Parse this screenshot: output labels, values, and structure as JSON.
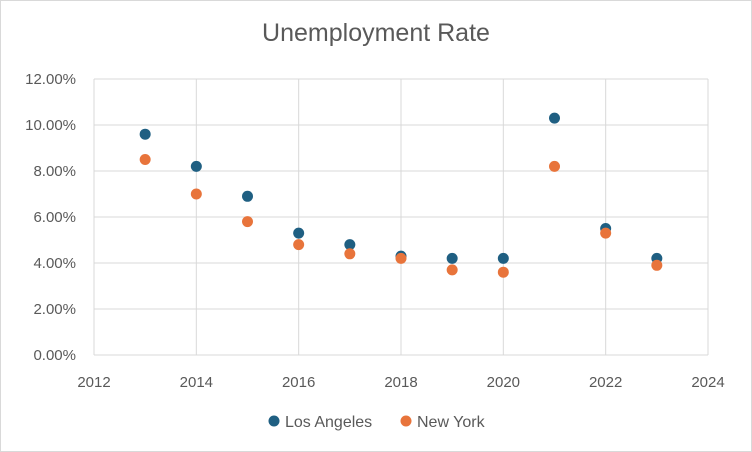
{
  "chart_data": {
    "type": "scatter",
    "title": "Unemployment Rate",
    "xlabel": "",
    "ylabel": "",
    "xlim": [
      2012,
      2024
    ],
    "ylim": [
      0,
      0.12
    ],
    "x_ticks": [
      "2012",
      "2014",
      "2016",
      "2018",
      "2020",
      "2022",
      "2024"
    ],
    "y_ticks": [
      "0.00%",
      "2.00%",
      "4.00%",
      "6.00%",
      "8.00%",
      "10.00%",
      "12.00%"
    ],
    "grid": true,
    "legend_position": "bottom",
    "x": [
      2013,
      2014,
      2015,
      2016,
      2017,
      2018,
      2019,
      2020,
      2021,
      2022,
      2023
    ],
    "series": [
      {
        "name": "Los Angeles",
        "color": "#1f5f82",
        "values": [
          0.096,
          0.082,
          0.069,
          0.053,
          0.048,
          0.043,
          0.042,
          0.042,
          0.103,
          0.055,
          0.042
        ]
      },
      {
        "name": "New York",
        "color": "#e8743b",
        "values": [
          0.085,
          0.07,
          0.058,
          0.048,
          0.044,
          0.042,
          0.037,
          0.036,
          0.082,
          0.053,
          0.039
        ]
      }
    ]
  }
}
